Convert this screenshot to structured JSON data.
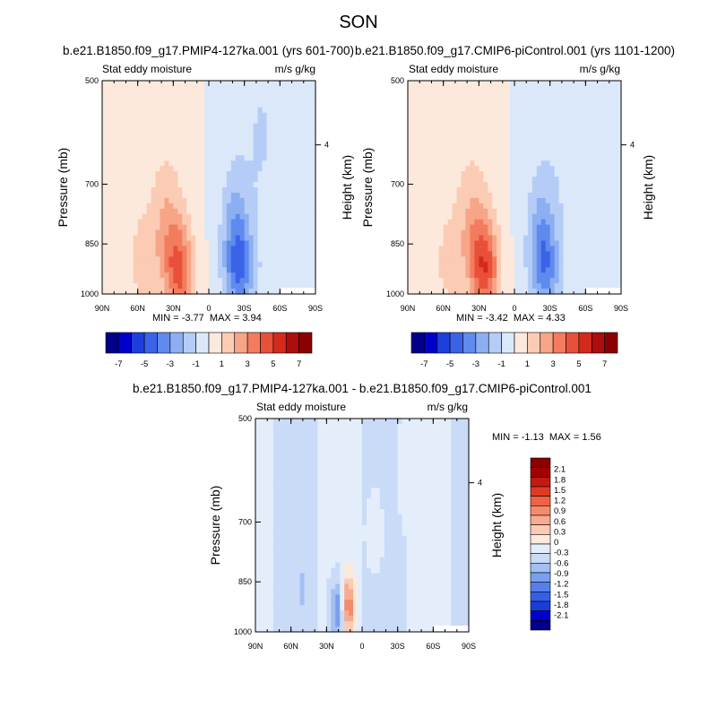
{
  "figure": {
    "title": "SON"
  },
  "colors": {
    "levels_top": [
      "#00008b",
      "#0000cd",
      "#1c3fdc",
      "#3b63e8",
      "#5f8aee",
      "#8caff2",
      "#b5cdf6",
      "#dbe8fa",
      "#fde8dc",
      "#fbcbb4",
      "#f7a587",
      "#f37c5e",
      "#e9503a",
      "#d42a1c",
      "#ad0e0d",
      "#8b0000"
    ],
    "levels_diff": [
      "#00008b",
      "#0000cd",
      "#1a3cdc",
      "#3360e6",
      "#5580ec",
      "#7a9ff0",
      "#a3bff4",
      "#c9dbf7",
      "#e4eefb",
      "#fde8dc",
      "#fbcbb4",
      "#f8ab8e",
      "#f58a6a",
      "#ef6244",
      "#e03a22",
      "#c31a10",
      "#a30000",
      "#8b0000"
    ]
  },
  "chart_data": [
    {
      "type": "heatmap",
      "title": "b.e21.B1850.f09_g17.PMIP4-127ka.001 (yrs 601-700)",
      "subtitle_left": "Stat eddy moisture",
      "subtitle_right": "m/s g/kg",
      "ylabel": "Pressure (mb)",
      "ylabel_right": "Height (km)",
      "x_ticks": [
        "90N",
        "60N",
        "30N",
        "0",
        "30S",
        "60S",
        "90S"
      ],
      "y_ticks": [
        "500",
        "700",
        "850",
        "1000"
      ],
      "y_ticks_right": [
        "4"
      ],
      "min_label": "MIN =",
      "min": "-3.77",
      "max_label": "MAX =",
      "max": "3.94",
      "colorbar": {
        "levels": [
          "-7",
          "-5",
          "-3",
          "-1",
          "1",
          "3",
          "5",
          "7"
        ]
      },
      "features": [
        {
          "lat": 25,
          "p": 930,
          "value": 3.94
        },
        {
          "lat": 35,
          "p": 800,
          "value": 1.5
        },
        {
          "lat": 55,
          "p": 900,
          "value": 1.2
        },
        {
          "lat": -25,
          "p": 920,
          "value": -3.77
        },
        {
          "lat": -22,
          "p": 780,
          "value": -1.5
        },
        {
          "lat": -45,
          "p": 600,
          "value": -0.5
        }
      ]
    },
    {
      "type": "heatmap",
      "title": "b.e21.B1850.f09_g17.CMIP6-piControl.001 (yrs 1101-1200)",
      "subtitle_left": "Stat eddy moisture",
      "subtitle_right": "m/s g/kg",
      "ylabel": "Pressure (mb)",
      "ylabel_right": "Height (km)",
      "x_ticks": [
        "90N",
        "60N",
        "30N",
        "0",
        "30S",
        "60S",
        "90S"
      ],
      "y_ticks": [
        "500",
        "700",
        "850",
        "1000"
      ],
      "y_ticks_right": [
        "4"
      ],
      "min_label": "MIN =",
      "min": "-3.42",
      "max_label": "MAX =",
      "max": "4.33",
      "colorbar": {
        "levels": [
          "-7",
          "-5",
          "-3",
          "-1",
          "1",
          "3",
          "5",
          "7"
        ]
      },
      "features": [
        {
          "lat": 25,
          "p": 920,
          "value": 4.33
        },
        {
          "lat": 35,
          "p": 800,
          "value": 1.5
        },
        {
          "lat": 55,
          "p": 900,
          "value": 1.0
        },
        {
          "lat": -25,
          "p": 910,
          "value": -3.42
        },
        {
          "lat": -22,
          "p": 780,
          "value": -1.2
        },
        {
          "lat": -45,
          "p": 600,
          "value": -0.4
        }
      ]
    },
    {
      "type": "heatmap",
      "title": "b.e21.B1850.f09_g17.PMIP4-127ka.001 - b.e21.B1850.f09_g17.CMIP6-piControl.001",
      "subtitle_left": "Stat eddy moisture",
      "subtitle_right": "m/s g/kg",
      "ylabel": "Pressure (mb)",
      "ylabel_right": "Height (km)",
      "x_ticks": [
        "90N",
        "60N",
        "30N",
        "0",
        "30S",
        "60S",
        "90S"
      ],
      "y_ticks": [
        "500",
        "700",
        "850",
        "1000"
      ],
      "y_ticks_right": [
        "4"
      ],
      "min_label": "MIN =",
      "min": "-1.13",
      "max_label": "MAX =",
      "max": "1.56",
      "colorbar": {
        "levels": [
          "2.1",
          "1.8",
          "1.5",
          "1.2",
          "0.9",
          "0.6",
          "0.3",
          "0",
          "-0.3",
          "-0.6",
          "-0.9",
          "-1.2",
          "-1.5",
          "-1.8",
          "-2.1"
        ]
      },
      "features": [
        {
          "lat": 12,
          "p": 920,
          "value": 1.56
        },
        {
          "lat": 20,
          "p": 930,
          "value": -1.13
        },
        {
          "lat": -12,
          "p": 720,
          "value": 0.4
        },
        {
          "lat": 50,
          "p": 880,
          "value": -0.3
        },
        {
          "lat": -35,
          "p": 600,
          "value": 0.2
        }
      ]
    }
  ]
}
